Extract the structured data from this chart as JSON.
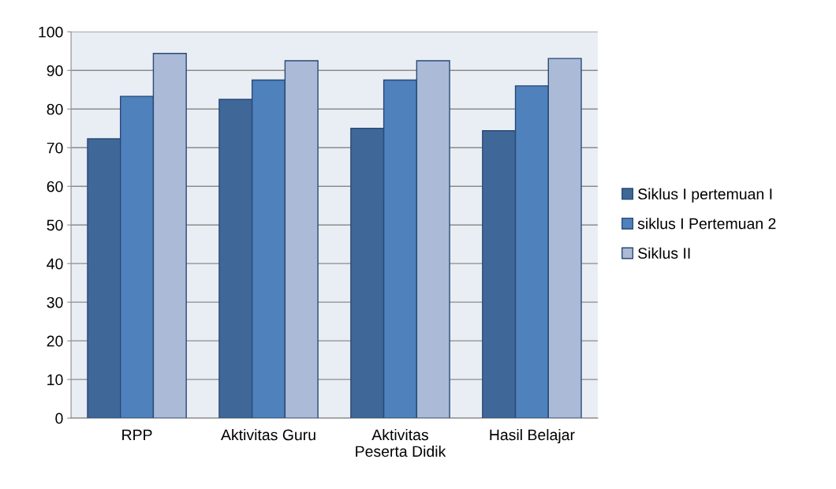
{
  "chart_data": {
    "type": "bar",
    "categories": [
      "RPP",
      "Aktivitas Guru",
      "Aktivitas\nPeserta Didik",
      "Hasil Belajar"
    ],
    "series": [
      {
        "name": "Siklus I pertemuan I",
        "color": "#3f6899",
        "values": [
          72.3,
          82.5,
          75,
          74.4
        ]
      },
      {
        "name": "siklus I Pertemuan 2",
        "color": "#4f81bd",
        "values": [
          83.3,
          87.5,
          87.5,
          86
        ]
      },
      {
        "name": "Siklus II",
        "color": "#aabad7",
        "values": [
          94.4,
          92.5,
          92.5,
          93.1
        ]
      }
    ],
    "ylim": [
      0,
      100
    ],
    "yticks": [
      0,
      10,
      20,
      30,
      40,
      50,
      60,
      70,
      80,
      90,
      100
    ],
    "grid": "y",
    "legend": "right"
  }
}
